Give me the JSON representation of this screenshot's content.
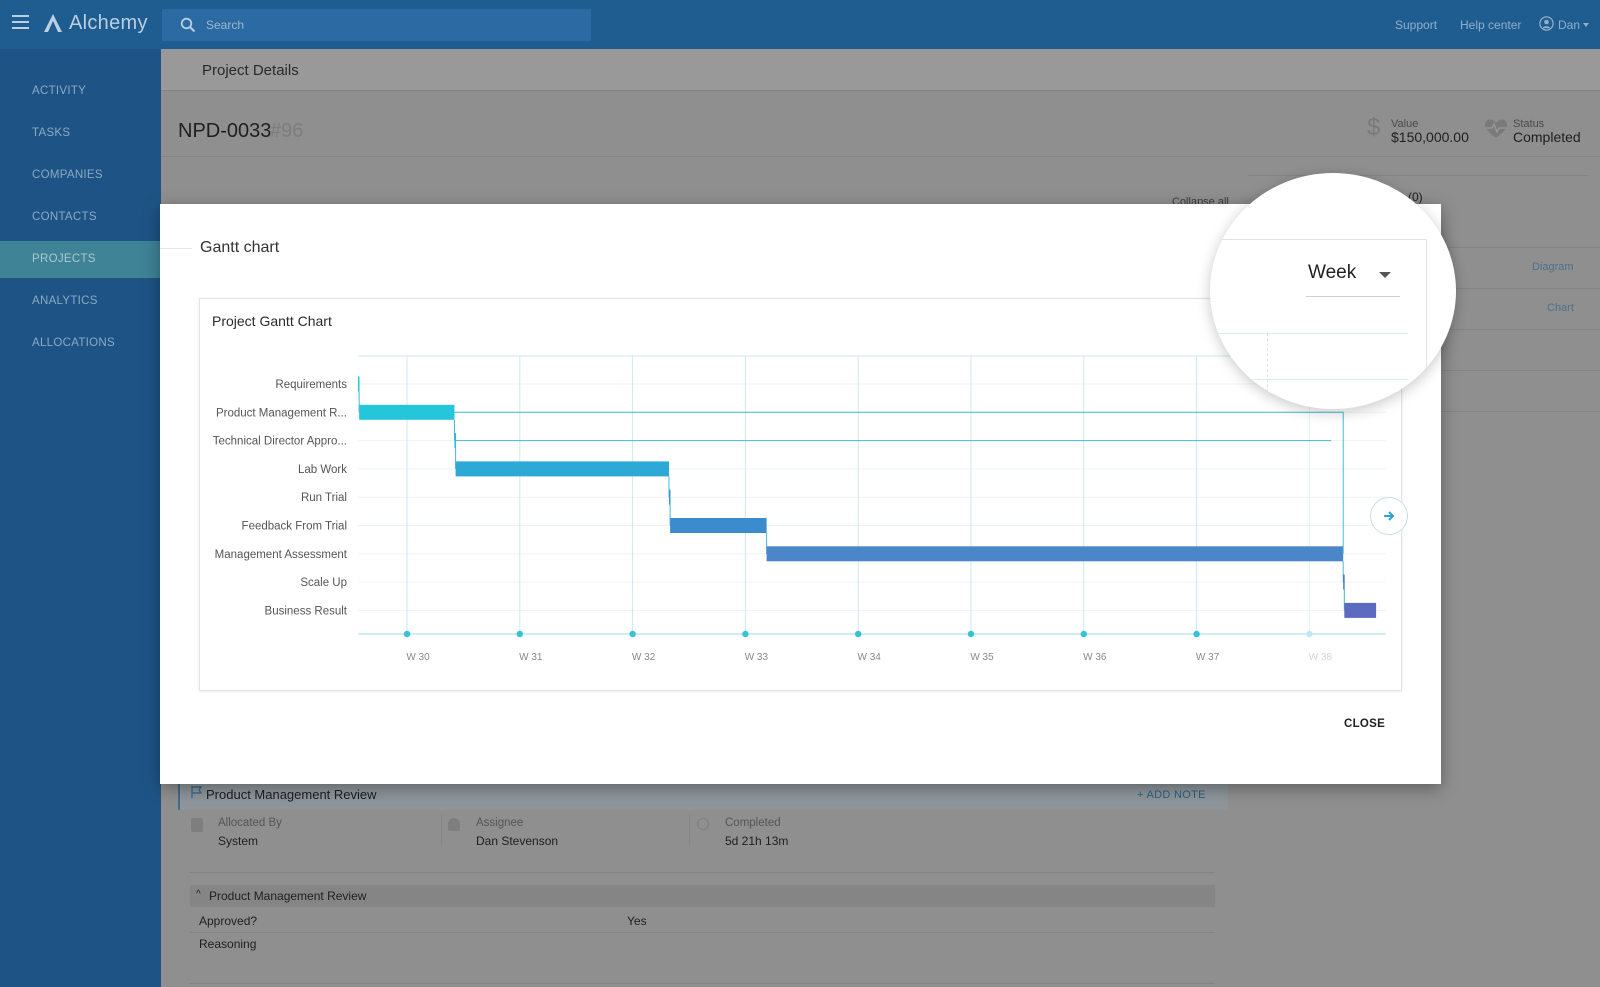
{
  "app": {
    "name": "Alchemy"
  },
  "topbar": {
    "search_placeholder": "Search",
    "links": {
      "support": "Support",
      "help": "Help center"
    },
    "user": "Dan"
  },
  "sidebar": {
    "items": [
      {
        "label": "ACTIVITY",
        "active": false
      },
      {
        "label": "TASKS",
        "active": false
      },
      {
        "label": "COMPANIES",
        "active": false
      },
      {
        "label": "CONTACTS",
        "active": false
      },
      {
        "label": "PROJECTS",
        "active": true
      },
      {
        "label": "ANALYTICS",
        "active": false
      },
      {
        "label": "ALLOCATIONS",
        "active": false
      }
    ]
  },
  "page": {
    "title": "Project Details",
    "project_code": "NPD-0033",
    "project_number": "#96",
    "value_label": "Value",
    "value": "$150,000.00",
    "status_label": "Status",
    "status": "Completed",
    "collapse_all": "Collapse all",
    "count_badge": "(0)",
    "diagram_link": "Diagram",
    "chart_link": "Chart"
  },
  "task": {
    "title": "Product Management Review",
    "add_note": "ADD NOTE",
    "allocated_by_label": "Allocated By",
    "allocated_by": "System",
    "assignee_label": "Assignee",
    "assignee": "Dan Stevenson",
    "completed_label": "Completed",
    "completed": "5d 21h 13m",
    "section_title": "Product Management Review",
    "rows": [
      {
        "label": "Approved?",
        "value": "Yes"
      },
      {
        "label": "Reasoning",
        "value": ""
      }
    ]
  },
  "modal": {
    "title": "Gantt chart",
    "period_select": "Week",
    "close_label": "CLOSE"
  },
  "colors": {
    "topbar": "#1f5c8f",
    "sidebar": "#1e5485",
    "sidebar_active": "#3f8397",
    "gantt_light": "#26c6da",
    "gantt_mid": "#2ca3d4",
    "gantt_blue": "#3a8ccd",
    "gantt_deep": "#4a86c8",
    "gantt_indigo": "#5c6bc0",
    "grid": "#cde9f0"
  },
  "chart_data": {
    "type": "gantt",
    "title": "Project Gantt Chart",
    "unit": "week",
    "x_ticks": [
      "W 30",
      "W 31",
      "W 32",
      "W 33",
      "W 34",
      "W 35",
      "W 36",
      "W 37",
      "W 38"
    ],
    "tasks": [
      {
        "name": "Requirements",
        "start": 29.45,
        "end": 29.46,
        "color": "#26c6da"
      },
      {
        "name": "Product Management R...",
        "start": 29.46,
        "end": 30.3,
        "color": "#26c6da"
      },
      {
        "name": "Technical Director Appro...",
        "start": 30.3,
        "end": 30.31,
        "color": "#27b8d8"
      },
      {
        "name": "Lab Work",
        "start": 30.31,
        "end": 32.19,
        "color": "#2ca9d6"
      },
      {
        "name": "Run Trial",
        "start": 32.19,
        "end": 32.2,
        "color": "#329bd2"
      },
      {
        "name": "Feedback From Trial",
        "start": 32.2,
        "end": 33.05,
        "color": "#3a8ccd"
      },
      {
        "name": "Management Assessment",
        "start": 33.05,
        "end": 38.13,
        "color": "#4a86c8"
      },
      {
        "name": "Scale Up",
        "start": 38.13,
        "end": 38.14,
        "color": "#5479c4"
      },
      {
        "name": "Business Result",
        "start": 38.14,
        "end": 38.42,
        "color": "#5c6bc0"
      }
    ]
  }
}
